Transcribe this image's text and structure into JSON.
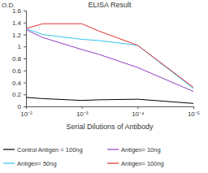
{
  "chart_data": {
    "type": "line",
    "title": "ELISA Result",
    "y_label": "O.D.",
    "x_label": "Serial Dilutions of Antibody",
    "log": "x",
    "grid": false,
    "legend": "bottom",
    "x": [
      0.01,
      0.005,
      0.001,
      0.0005,
      0.0001,
      1e-05
    ],
    "xlim": [
      0.01,
      1e-05
    ],
    "xticks": [
      {
        "value": 0.01,
        "label": "10⁻²"
      },
      {
        "value": 0.001,
        "label": "10⁻³"
      },
      {
        "value": 0.0001,
        "label": "10⁻⁴"
      },
      {
        "value": 1e-05,
        "label": "10⁻⁵"
      }
    ],
    "ylim": [
      0,
      1.6
    ],
    "yticks": [
      0,
      0.2,
      0.4,
      0.6,
      0.8,
      1,
      1.2,
      1.4,
      1.6
    ],
    "series": [
      {
        "name": "Control Antigen = 100ng",
        "color": "#000000",
        "values": [
          0.15,
          0.13,
          0.1,
          0.11,
          0.12,
          0.05
        ]
      },
      {
        "name": "Antigen= 10ng",
        "color": "#9040c0",
        "values": [
          1.28,
          1.15,
          0.95,
          0.87,
          0.65,
          0.25
        ]
      },
      {
        "name": "Antigen= 50ng",
        "color": "#33c4ee",
        "values": [
          1.3,
          1.2,
          1.12,
          1.1,
          1.02,
          0.3
        ]
      },
      {
        "name": "Antigen= 100ng",
        "color": "#e03030",
        "values": [
          1.3,
          1.38,
          1.38,
          1.26,
          1.02,
          0.32
        ]
      }
    ]
  }
}
